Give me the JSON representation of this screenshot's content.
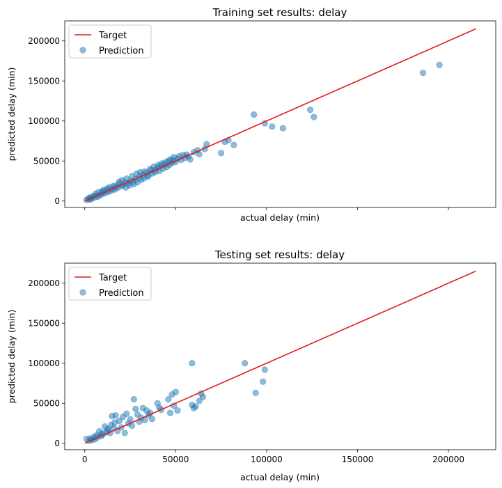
{
  "chart_data": [
    {
      "type": "scatter",
      "title": "Training set results: delay",
      "xlabel": "actual delay (min)",
      "ylabel": "predicted delay (min)",
      "xlim": [
        -11000,
        226000
      ],
      "ylim": [
        -8000,
        225000
      ],
      "xticks": [
        0,
        50000,
        100000,
        150000,
        200000
      ],
      "yticks": [
        0,
        50000,
        100000,
        150000,
        200000
      ],
      "show_xtick_labels": false,
      "grid": false,
      "legend_position": "top-left",
      "series": [
        {
          "name": "Target",
          "kind": "line",
          "color": "#e41a1c",
          "x": [
            0,
            215000
          ],
          "y": [
            0,
            215000
          ]
        },
        {
          "name": "Prediction",
          "kind": "scatter",
          "color": "#1f77b4",
          "x": [
            1000,
            2000,
            2500,
            3000,
            3500,
            4000,
            5000,
            5500,
            6000,
            7000,
            7500,
            8000,
            9000,
            9500,
            10000,
            10500,
            11000,
            12000,
            12500,
            13000,
            14000,
            14500,
            15000,
            16000,
            16500,
            17000,
            18000,
            18500,
            19000,
            20000,
            20500,
            21000,
            22000,
            22500,
            23000,
            24000,
            24500,
            25000,
            26000,
            26500,
            27000,
            28000,
            28500,
            29000,
            30000,
            30500,
            31000,
            32000,
            32500,
            33000,
            34000,
            34500,
            35000,
            36000,
            36500,
            37000,
            38000,
            38500,
            39000,
            40000,
            40500,
            41000,
            42000,
            42500,
            43000,
            44000,
            44500,
            45000,
            46000,
            46500,
            47000,
            48000,
            48500,
            49000,
            50000,
            51000,
            52000,
            53000,
            54000,
            55000,
            56000,
            57000,
            58000,
            60000,
            62000,
            63000,
            66000,
            67000,
            75000,
            77000,
            79000,
            82000,
            93000,
            99000,
            103000,
            109000,
            124000,
            126000,
            186000,
            195000
          ],
          "y": [
            1500,
            2500,
            4000,
            2000,
            5000,
            3000,
            6500,
            4500,
            9000,
            5500,
            11000,
            7000,
            8000,
            12500,
            10500,
            14000,
            9500,
            13000,
            16000,
            11500,
            17500,
            13000,
            15000,
            19000,
            14500,
            18000,
            16500,
            21000,
            24000,
            18500,
            26000,
            20000,
            23000,
            17000,
            28000,
            22500,
            19500,
            25000,
            31000,
            24000,
            21000,
            27500,
            34000,
            23500,
            30000,
            36000,
            26500,
            33000,
            28500,
            37000,
            35500,
            30500,
            32000,
            40000,
            38500,
            34500,
            43000,
            36000,
            39000,
            41500,
            45000,
            37500,
            44000,
            47000,
            40500,
            46000,
            48500,
            42500,
            50000,
            45000,
            52000,
            47500,
            51000,
            55000,
            49000,
            53000,
            56000,
            51500,
            57500,
            54000,
            58000,
            55500,
            52000,
            61000,
            63500,
            58500,
            65000,
            71000,
            60000,
            74000,
            76000,
            70000,
            108000,
            97000,
            93000,
            91000,
            114000,
            105000,
            160000,
            170000
          ]
        }
      ]
    },
    {
      "type": "scatter",
      "title": "Testing set results: delay",
      "xlabel": "actual delay (min)",
      "ylabel": "predicted delay (min)",
      "xlim": [
        -11000,
        226000
      ],
      "ylim": [
        -8000,
        225000
      ],
      "xticks": [
        0,
        50000,
        100000,
        150000,
        200000
      ],
      "yticks": [
        0,
        50000,
        100000,
        150000,
        200000
      ],
      "show_xtick_labels": true,
      "grid": false,
      "legend_position": "top-left",
      "series": [
        {
          "name": "Target",
          "kind": "line",
          "color": "#e41a1c",
          "x": [
            0,
            215000
          ],
          "y": [
            0,
            215000
          ]
        },
        {
          "name": "Prediction",
          "kind": "scatter",
          "color": "#1f77b4",
          "x": [
            1000,
            2500,
            3000,
            4000,
            5000,
            5500,
            6500,
            7000,
            8000,
            9000,
            9500,
            10000,
            11000,
            12000,
            12500,
            13000,
            14000,
            14500,
            15000,
            16000,
            16500,
            17000,
            18000,
            19000,
            20000,
            21000,
            22000,
            23000,
            24000,
            25000,
            26000,
            27000,
            28000,
            29000,
            30000,
            31000,
            32000,
            33000,
            34000,
            35000,
            36000,
            37000,
            40000,
            41000,
            42000,
            46000,
            47000,
            48000,
            49000,
            50000,
            51000,
            59000,
            59000,
            60000,
            61000,
            63000,
            64000,
            65000,
            88000,
            94000,
            98000,
            99000
          ],
          "y": [
            5500,
            3000,
            6000,
            4500,
            8000,
            5000,
            10000,
            7500,
            15000,
            9000,
            12500,
            11000,
            21000,
            14000,
            18000,
            16500,
            13000,
            23000,
            34000,
            19500,
            26000,
            35000,
            15500,
            28000,
            20000,
            33000,
            13000,
            37000,
            25000,
            30000,
            22000,
            55000,
            43000,
            36000,
            27000,
            32000,
            44000,
            29000,
            41000,
            35500,
            38000,
            30500,
            50000,
            44500,
            42000,
            55000,
            38000,
            61000,
            47000,
            64000,
            41000,
            100000,
            48000,
            44000,
            46000,
            53000,
            62000,
            58000,
            100000,
            63000,
            77000,
            92000
          ]
        }
      ]
    }
  ]
}
